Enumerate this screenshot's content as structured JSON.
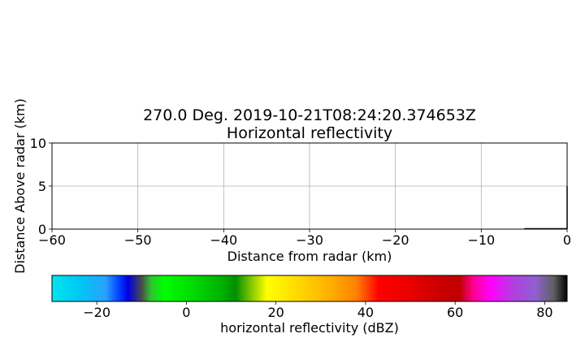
{
  "chart_data": [
    {
      "type": "line",
      "title_line1": "270.0 Deg. 2019-10-21T08:24:20.374653Z",
      "title_line2": "Horizontal reflectivity",
      "xlabel": "Distance from radar (km)",
      "ylabel": "Distance Above radar  (km)",
      "xlim": [
        -60,
        0
      ],
      "ylim": [
        0,
        10
      ],
      "xticks": [
        -60,
        -50,
        -40,
        -30,
        -20,
        -10,
        0
      ],
      "xtick_labels": [
        "−60",
        "−50",
        "−40",
        "−30",
        "−20",
        "−10",
        "0"
      ],
      "yticks": [
        0,
        5,
        10
      ],
      "ytick_labels": [
        "0",
        "5",
        "10"
      ],
      "grid": true,
      "series": [
        {
          "values": [
            [
              -5.0,
              0.05
            ],
            [
              0.0,
              0.05
            ]
          ],
          "color": "#000000"
        },
        {
          "values": [
            [
              0.0,
              0.0
            ],
            [
              0.0,
              5.0
            ]
          ],
          "color": "#000000"
        }
      ]
    },
    {
      "type": "heatmap",
      "label": "horizontal reflectivity (dBZ)",
      "range": [
        -30,
        85
      ],
      "ticks": [
        -20,
        0,
        20,
        40,
        60,
        80
      ],
      "tick_labels": [
        "−20",
        "0",
        "20",
        "40",
        "60",
        "80"
      ],
      "colormap_stops": [
        [
          -30,
          "#00e5ee"
        ],
        [
          -24,
          "#00c8f5"
        ],
        [
          -18,
          "#2aa0ff"
        ],
        [
          -15,
          "#0040ff"
        ],
        [
          -13,
          "#0000e0"
        ],
        [
          -10,
          "#4a4a4a"
        ],
        [
          -8,
          "#30c030"
        ],
        [
          -5,
          "#00ff00"
        ],
        [
          2,
          "#00d800"
        ],
        [
          8,
          "#00b000"
        ],
        [
          11,
          "#009000"
        ],
        [
          14,
          "#70c000"
        ],
        [
          18,
          "#ffff00"
        ],
        [
          25,
          "#ffd800"
        ],
        [
          32,
          "#ffb000"
        ],
        [
          38,
          "#ff8000"
        ],
        [
          43,
          "#ff0000"
        ],
        [
          50,
          "#e80000"
        ],
        [
          57,
          "#c80000"
        ],
        [
          61,
          "#c00000"
        ],
        [
          64,
          "#ff0090"
        ],
        [
          68,
          "#ff00ff"
        ],
        [
          73,
          "#b040e0"
        ],
        [
          78,
          "#9060d0"
        ],
        [
          82,
          "#606060"
        ],
        [
          85,
          "#000000"
        ]
      ]
    }
  ]
}
